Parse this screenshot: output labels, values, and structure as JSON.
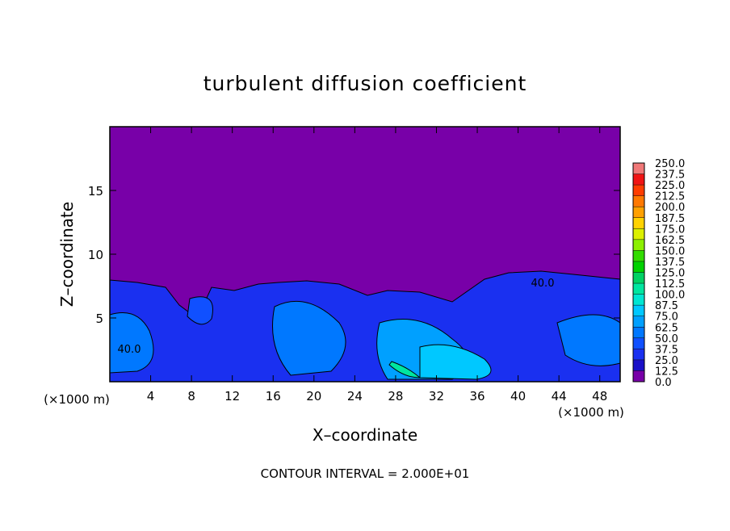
{
  "chart_data": {
    "type": "contour",
    "title": "turbulent diffusion coefficient",
    "xlabel": "X–coordinate",
    "ylabel": "Z–coordinate",
    "x_unit": "(×1000 m)",
    "y_unit": "(×1000 m)",
    "xlim": [
      0,
      50
    ],
    "ylim": [
      0,
      20
    ],
    "xticks": [
      4,
      8,
      12,
      16,
      20,
      24,
      28,
      32,
      36,
      40,
      44,
      48
    ],
    "yticks": [
      5,
      10,
      15
    ],
    "contour_labels": [
      "40.0",
      "40.0"
    ],
    "annotation": "CONTOUR INTERVAL = 2.000E+01",
    "colorbar": {
      "levels": [
        {
          "value": 0,
          "label": "0.0"
        },
        {
          "value": 12.5,
          "label": "12.5"
        },
        {
          "value": 25,
          "label": "25.0"
        },
        {
          "value": 37.5,
          "label": "37.5"
        },
        {
          "value": 50,
          "label": "50.0"
        },
        {
          "value": 62.5,
          "label": "62.5"
        },
        {
          "value": 75,
          "label": "75.0"
        },
        {
          "value": 87.5,
          "label": "87.5"
        },
        {
          "value": 100,
          "label": "100.0"
        },
        {
          "value": 112.5,
          "label": "112.5"
        },
        {
          "value": 125,
          "label": "125.0"
        },
        {
          "value": 137.5,
          "label": "137.5"
        },
        {
          "value": 150,
          "label": "150.0"
        },
        {
          "value": 162.5,
          "label": "162.5"
        },
        {
          "value": 175,
          "label": "175.0"
        },
        {
          "value": 187.5,
          "label": "187.5"
        },
        {
          "value": 200,
          "label": "200.0"
        },
        {
          "value": 212.5,
          "label": "212.5"
        },
        {
          "value": 225,
          "label": "225.0"
        },
        {
          "value": 237.5,
          "label": "237.5"
        },
        {
          "value": 250,
          "label": "250.0"
        }
      ],
      "colors": [
        "#7800a8",
        "#1a10c8",
        "#1a30f0",
        "#1050ff",
        "#0078ff",
        "#00a0ff",
        "#00c8ff",
        "#00e6d2",
        "#00e6a0",
        "#00d264",
        "#00d200",
        "#32dc00",
        "#8cf000",
        "#dcf000",
        "#ffd200",
        "#ffa000",
        "#ff7800",
        "#ff3c00",
        "#f01414",
        "#f07878"
      ]
    }
  }
}
